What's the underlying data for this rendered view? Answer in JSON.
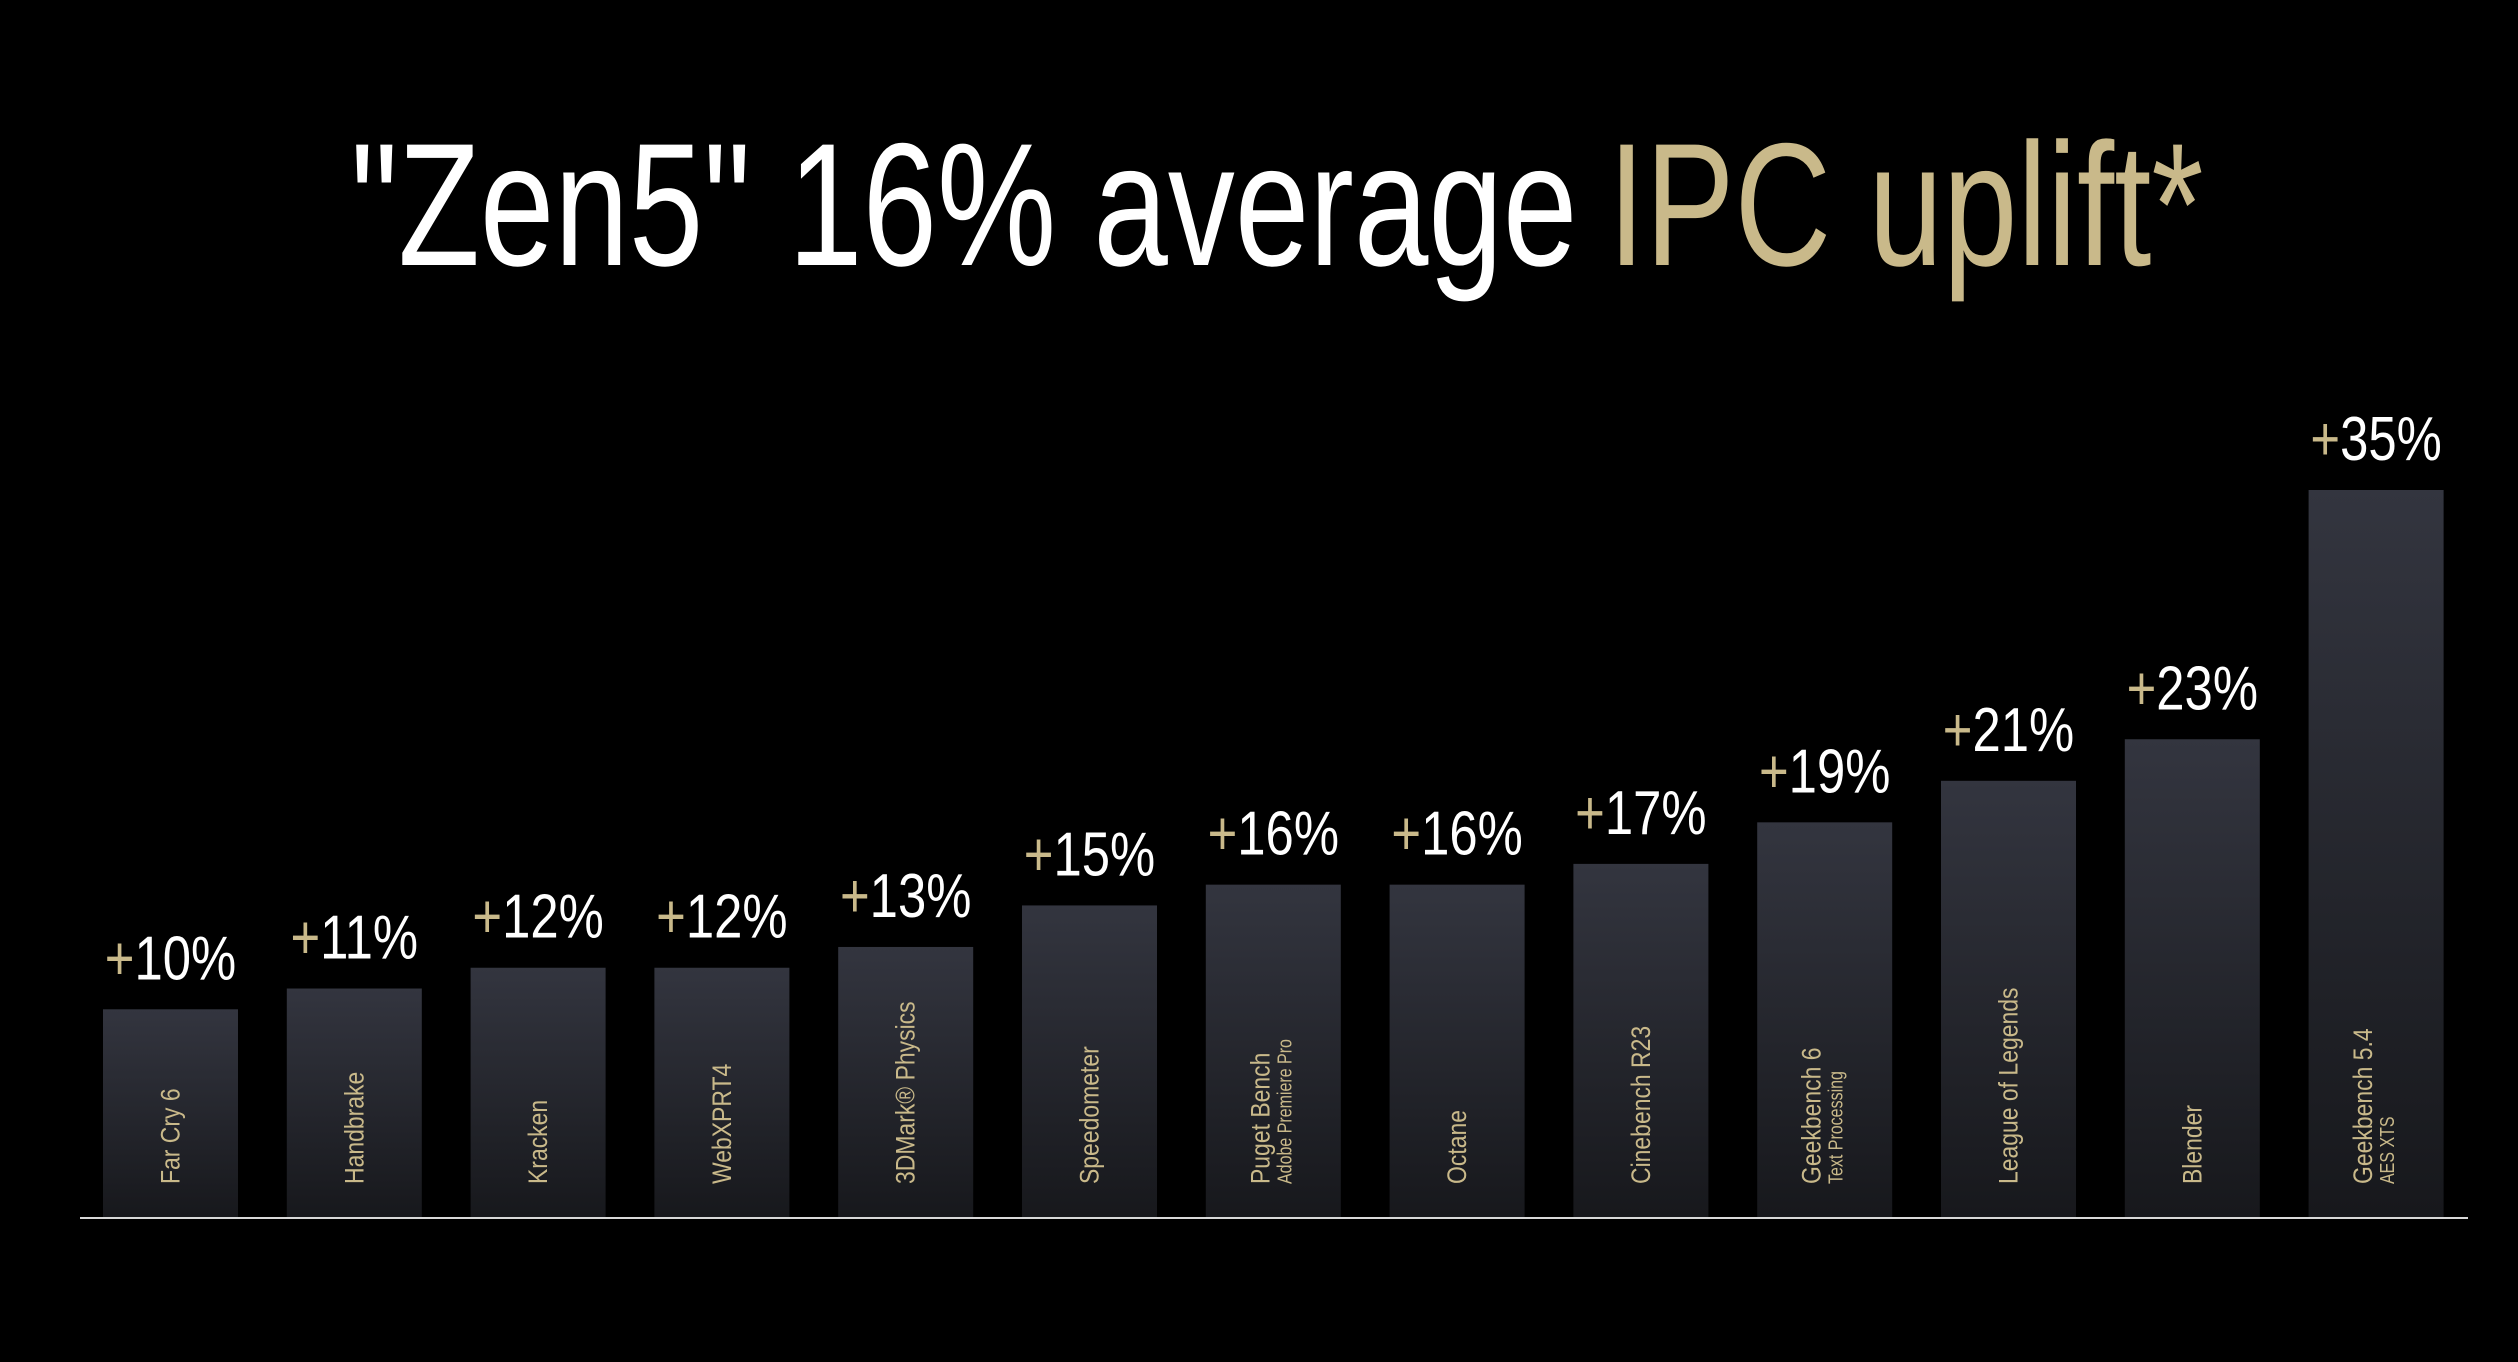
{
  "chart_data": {
    "type": "bar",
    "title": [
      "\"Zen5\" 16% average",
      "IPC uplift*"
    ],
    "categories": [
      "Far Cry 6",
      "Handbrake",
      "Kracken",
      "WebXPRT4",
      "3DMark® Physics",
      "Speedometer",
      "Puget Bench",
      "Octane",
      "Cinebench R23",
      "Geekbench 6",
      "League of Legends",
      "Blender",
      "Geekbench 5.4"
    ],
    "category_notes": [
      null,
      null,
      null,
      null,
      null,
      null,
      "Adobe Premiere Pro",
      null,
      null,
      "Text Processing",
      null,
      null,
      "AES XTS"
    ],
    "values": [
      10,
      11,
      12,
      12,
      13,
      15,
      16,
      16,
      17,
      19,
      21,
      23,
      35
    ],
    "value_labels": [
      "+10%",
      "+11%",
      "+12%",
      "+12%",
      "+13%",
      "+15%",
      "+16%",
      "+16%",
      "+17%",
      "+19%",
      "+21%",
      "+23%",
      "+35%"
    ],
    "color": "#33353f",
    "accent_color": "#c9b98a"
  }
}
